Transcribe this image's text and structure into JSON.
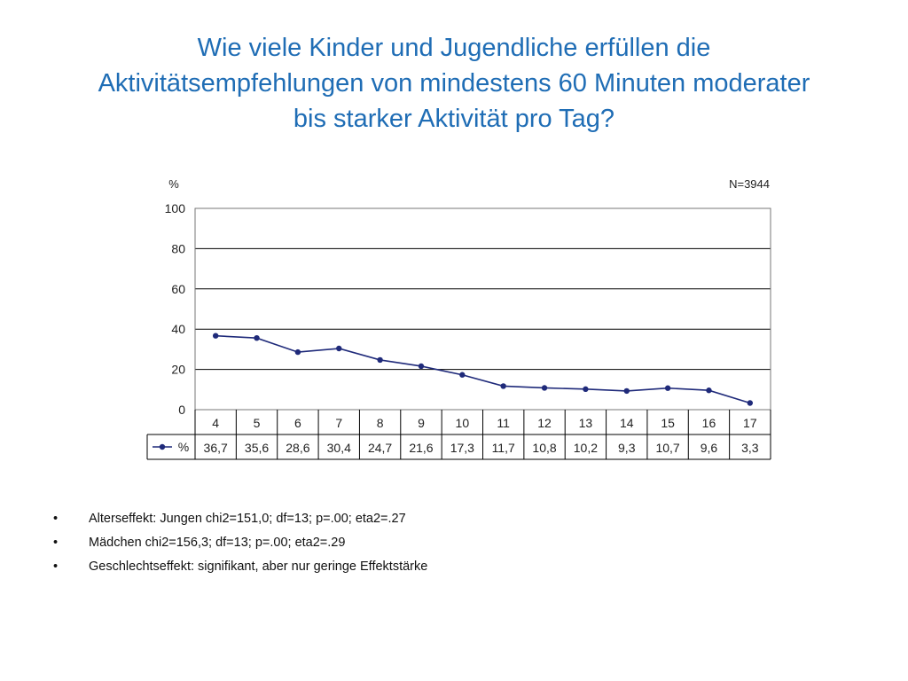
{
  "slide": {
    "title_lines": [
      "Wie viele Kinder und Jugendliche erfüllen die",
      "Aktivitätsempfehlungen von mindestens 60 Minuten moderater",
      "bis starker Aktivität pro Tag?"
    ]
  },
  "chart_data": {
    "type": "line",
    "ylabel": "%",
    "annotation": "N=3944",
    "x": [
      "4",
      "5",
      "6",
      "7",
      "8",
      "9",
      "10",
      "11",
      "12",
      "13",
      "14",
      "15",
      "16",
      "17"
    ],
    "series": [
      {
        "name": "%",
        "values": [
          36.7,
          35.6,
          28.6,
          30.4,
          24.7,
          21.6,
          17.3,
          11.7,
          10.8,
          10.2,
          9.3,
          10.7,
          9.6,
          3.3
        ],
        "labels": [
          "36,7",
          "35,6",
          "28,6",
          "30,4",
          "24,7",
          "21,6",
          "17,3",
          "11,7",
          "10,8",
          "10,2",
          "9,3",
          "10,7",
          "9,6",
          "3,3"
        ],
        "color": "#1f2a7a"
      }
    ],
    "yticks": [
      "0",
      "20",
      "40",
      "60",
      "80",
      "100"
    ],
    "ylim": [
      0,
      100
    ],
    "grid": true,
    "legend": "data-table-left"
  },
  "bullets": [
    "Alterseffekt: Jungen chi2=151,0; df=13; p=.00; eta2=.27",
    "Mädchen chi2=156,3; df=13; p=.00; eta2=.29",
    "Geschlechtseffekt: signifikant, aber nur geringe Effektstärke"
  ],
  "bullet_char": "•"
}
